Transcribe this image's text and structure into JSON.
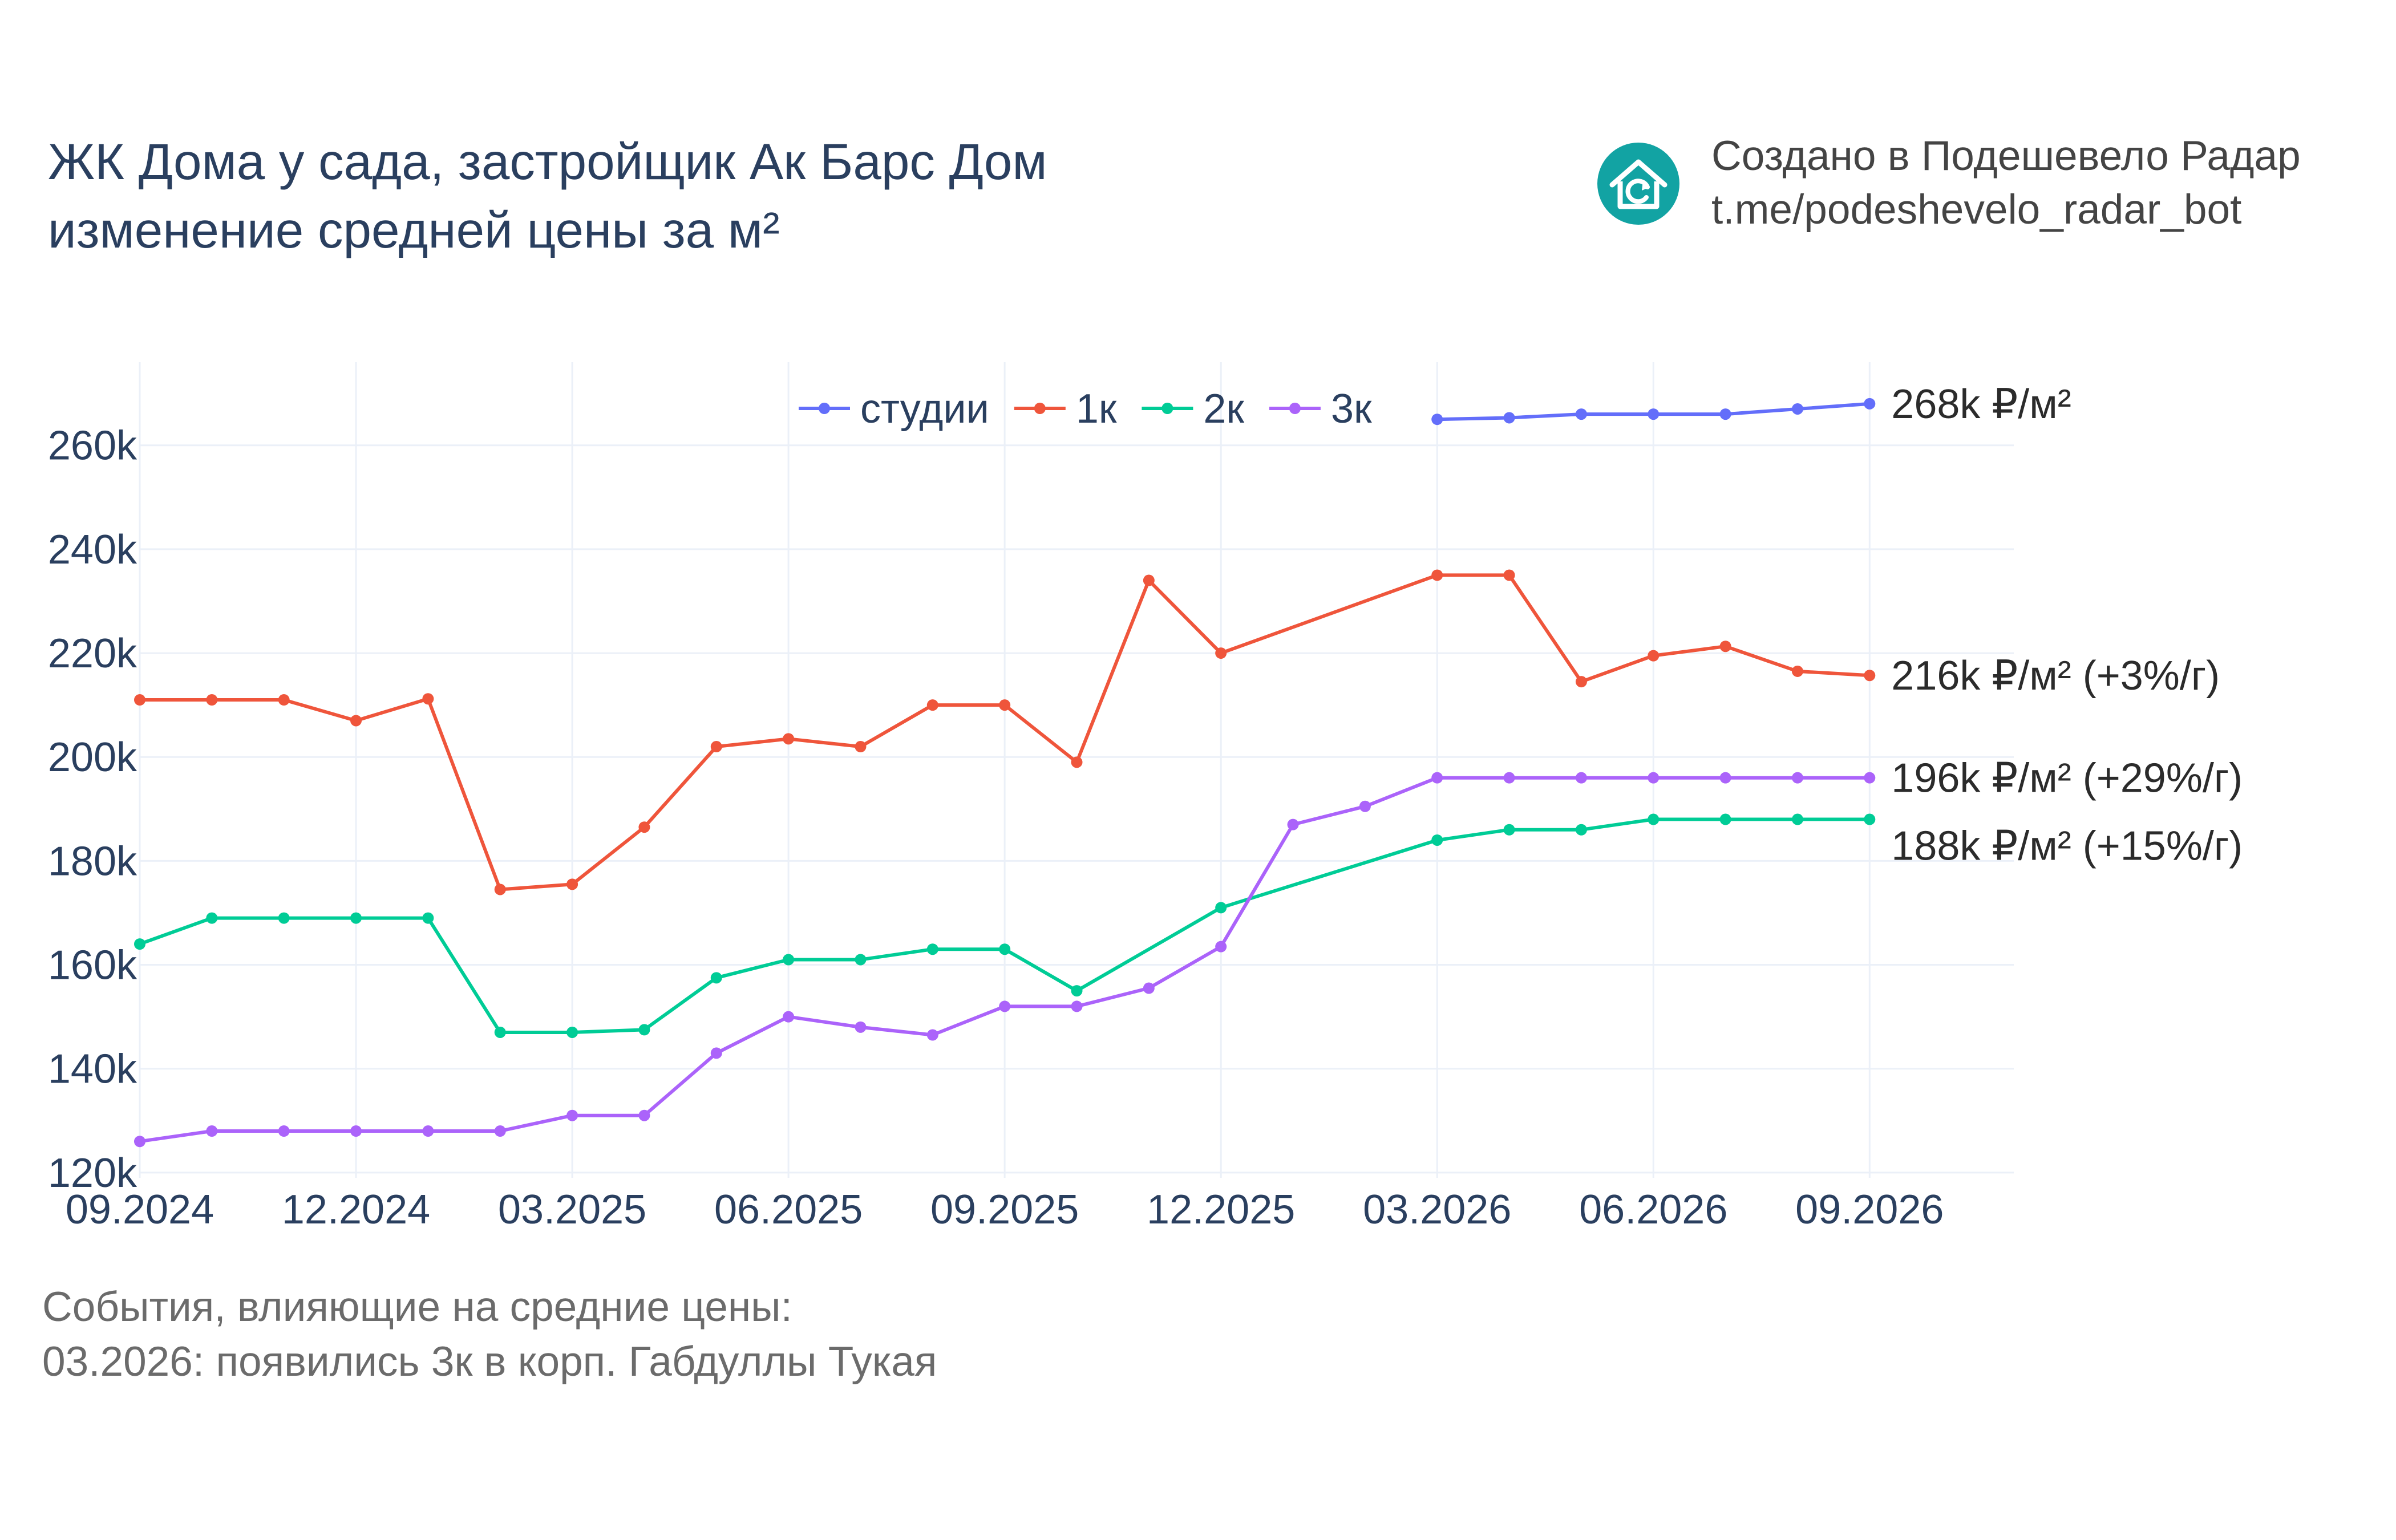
{
  "header": {
    "title_line1": "ЖК Дома у сада, застройщик Ак Барс Дом",
    "title_line2": "изменение средней цены за м²"
  },
  "credit": {
    "line1": "Создано в Подешевело Радар",
    "line2": "t.me/podeshevelo_radar_bot",
    "logo_icon": "house-refresh-icon",
    "logo_color": "#12a3a3"
  },
  "notes": {
    "line1": "События, влияющие на средние цены:",
    "line2": "03.2026: появились 3к в корп. Габдуллы Тукая"
  },
  "chart_data": {
    "type": "line",
    "x": [
      "2024-09",
      "2024-10",
      "2024-11",
      "2024-12",
      "2025-01",
      "2025-02",
      "2025-03",
      "2025-04",
      "2025-05",
      "2025-06",
      "2025-07",
      "2025-08",
      "2025-09",
      "2025-10",
      "2025-11",
      "2025-12",
      "2026-01",
      "2026-02",
      "2026-03",
      "2026-04",
      "2026-05",
      "2026-06",
      "2026-07",
      "2026-08",
      "2026-09"
    ],
    "x_ticks": [
      {
        "value": "2024-09",
        "label": "09.2024"
      },
      {
        "value": "2024-12",
        "label": "12.2024"
      },
      {
        "value": "2025-03",
        "label": "03.2025"
      },
      {
        "value": "2025-06",
        "label": "06.2025"
      },
      {
        "value": "2025-09",
        "label": "09.2025"
      },
      {
        "value": "2025-12",
        "label": "12.2025"
      },
      {
        "value": "2026-03",
        "label": "03.2026"
      },
      {
        "value": "2026-06",
        "label": "06.2026"
      },
      {
        "value": "2026-09",
        "label": "09.2026"
      }
    ],
    "y_ticks": [
      {
        "value": 120000,
        "label": "120k"
      },
      {
        "value": 140000,
        "label": "140k"
      },
      {
        "value": 160000,
        "label": "160k"
      },
      {
        "value": 180000,
        "label": "180k"
      },
      {
        "value": 200000,
        "label": "200k"
      },
      {
        "value": 220000,
        "label": "220k"
      },
      {
        "value": 240000,
        "label": "240k"
      },
      {
        "value": 260000,
        "label": "260k"
      }
    ],
    "xlim": [
      "2024-09",
      "2026-11"
    ],
    "ylim": [
      119000,
      276000
    ],
    "grid": true,
    "legend_position": "top-center",
    "series": [
      {
        "name": "студии",
        "color": "#636efa",
        "values": [
          null,
          null,
          null,
          null,
          null,
          null,
          null,
          null,
          null,
          null,
          null,
          null,
          null,
          null,
          null,
          null,
          null,
          null,
          265000,
          265300,
          266000,
          266000,
          266000,
          267000,
          268000
        ],
        "end_label": "268k ₽/м²"
      },
      {
        "name": "1к",
        "color": "#ef553b",
        "values": [
          211000,
          211000,
          211000,
          207000,
          211200,
          174500,
          175500,
          186500,
          202000,
          203500,
          202000,
          210000,
          210000,
          199000,
          234000,
          220000,
          null,
          null,
          235000,
          235000,
          214500,
          219500,
          221300,
          216500,
          215700
        ],
        "end_label": "216k ₽/м² (+3%/г)"
      },
      {
        "name": "2к",
        "color": "#00cc96",
        "values": [
          164000,
          169000,
          169000,
          169000,
          169000,
          147000,
          147000,
          147500,
          157500,
          161000,
          161000,
          163000,
          163000,
          155000,
          null,
          171000,
          null,
          null,
          184000,
          186000,
          186000,
          188000,
          188000,
          188000,
          188000
        ],
        "end_label": "188k ₽/м² (+15%/г)"
      },
      {
        "name": "3к",
        "color": "#ab63fa",
        "values": [
          126000,
          128000,
          128000,
          128000,
          128000,
          128000,
          131000,
          131000,
          143000,
          150000,
          148000,
          146500,
          152000,
          152000,
          155500,
          163500,
          187000,
          190500,
          196000,
          196000,
          196000,
          196000,
          196000,
          196000,
          196000
        ],
        "end_label": "196k ₽/м² (+29%/г)"
      }
    ]
  }
}
